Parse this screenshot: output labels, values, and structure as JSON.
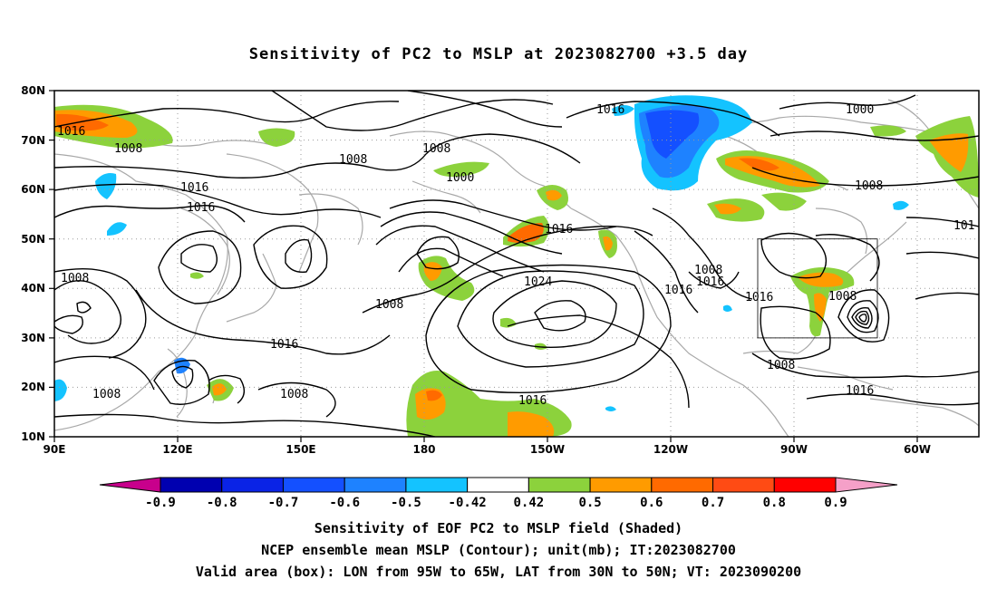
{
  "title": "Sensitivity of PC2 to MSLP at 2023082700 +3.5 day",
  "map": {
    "lat_labels": [
      "80N",
      "70N",
      "60N",
      "50N",
      "40N",
      "30N",
      "20N",
      "10N"
    ],
    "lon_labels": [
      "90E",
      "120E",
      "150E",
      "180",
      "150W",
      "120W",
      "90W",
      "60W"
    ],
    "valid_box": {
      "lon_range": [
        "95W",
        "65W"
      ],
      "lat_range": [
        "30N",
        "50N"
      ]
    },
    "contour_labels": [
      {
        "text": "1016"
      },
      {
        "text": "1008"
      },
      {
        "text": "1008"
      },
      {
        "text": "1016"
      },
      {
        "text": "1016"
      },
      {
        "text": "1008"
      },
      {
        "text": "1008"
      },
      {
        "text": "1016"
      },
      {
        "text": "1008"
      },
      {
        "text": "1008"
      },
      {
        "text": "1008"
      },
      {
        "text": "1000"
      },
      {
        "text": "1016"
      },
      {
        "text": "1016"
      },
      {
        "text": "1024"
      },
      {
        "text": "1016"
      },
      {
        "text": "1016"
      },
      {
        "text": "1008"
      },
      {
        "text": "1016"
      },
      {
        "text": "1016"
      },
      {
        "text": "1008"
      },
      {
        "text": "1008"
      },
      {
        "text": "1000"
      },
      {
        "text": "1008"
      },
      {
        "text": "1016"
      },
      {
        "text": "101"
      }
    ]
  },
  "colorbar": {
    "ticks": [
      "-0.9",
      "-0.8",
      "-0.7",
      "-0.6",
      "-0.5",
      "-0.42",
      "0.42",
      "0.5",
      "0.6",
      "0.7",
      "0.8",
      "0.9"
    ],
    "colors": [
      "#0000b0",
      "#0a23e6",
      "#1450ff",
      "#1e82ff",
      "#14c3ff",
      "#ffffff",
      "#8cd23c",
      "#ff9b00",
      "#ff6a00",
      "#ff4b14",
      "#ff0000"
    ],
    "under_color": "#c8008c",
    "over_color": "#f5a0c8"
  },
  "shading_colors": {
    "green": "#8cd23c",
    "orange": "#ff9b00",
    "dark_orange": "#ff6a00",
    "red_orange": "#ff4b14",
    "cyan": "#14c3ff",
    "light_blue": "#1e82ff",
    "blue": "#1450ff"
  },
  "captions": {
    "line1": "Sensitivity of EOF PC2 to MSLP field (Shaded)",
    "line2": "NCEP ensemble mean MSLP (Contour); unit(mb); IT:2023082700",
    "line3": "Valid area (box): LON from 95W to 65W, LAT from 30N to 50N; VT: 2023090200"
  }
}
